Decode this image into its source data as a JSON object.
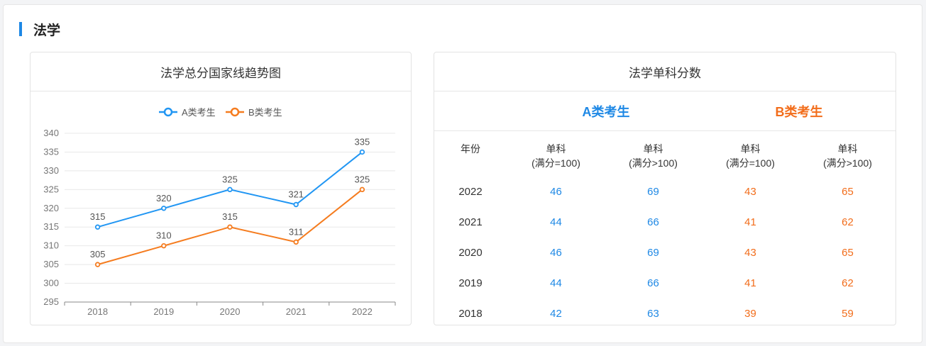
{
  "section": {
    "title": "法学"
  },
  "chart_card": {
    "title": "法学总分国家线趋势图"
  },
  "table_card": {
    "title": "法学单科分数",
    "group_a": "A类考生",
    "group_b": "B类考生",
    "headers": {
      "year": "年份",
      "col1_line1": "单科",
      "col1_line2": "(满分=100)",
      "col2_line1": "单科",
      "col2_line2": "(满分>100)",
      "col3_line1": "单科",
      "col3_line2": "(满分=100)",
      "col4_line1": "单科",
      "col4_line2": "(满分>100)"
    },
    "rows": [
      {
        "year": "2022",
        "a100": "46",
        "a_over": "69",
        "b100": "43",
        "b_over": "65"
      },
      {
        "year": "2021",
        "a100": "44",
        "a_over": "66",
        "b100": "41",
        "b_over": "62"
      },
      {
        "year": "2020",
        "a100": "46",
        "a_over": "69",
        "b100": "43",
        "b_over": "65"
      },
      {
        "year": "2019",
        "a100": "44",
        "a_over": "66",
        "b100": "41",
        "b_over": "62"
      },
      {
        "year": "2018",
        "a100": "42",
        "a_over": "63",
        "b100": "39",
        "b_over": "59"
      }
    ]
  },
  "colors": {
    "accent": "#1e88e5",
    "series_a": "#2196f3",
    "series_b": "#f57c1f"
  },
  "chart_data": {
    "type": "line",
    "title": "法学总分国家线趋势图",
    "categories": [
      "2018",
      "2019",
      "2020",
      "2021",
      "2022"
    ],
    "series": [
      {
        "name": "A类考生",
        "values": [
          315,
          320,
          325,
          321,
          335
        ],
        "color": "#2196f3"
      },
      {
        "name": "B类考生",
        "values": [
          305,
          310,
          315,
          311,
          325
        ],
        "color": "#f57c1f"
      }
    ],
    "ylim": [
      295,
      340
    ],
    "yticks": [
      295,
      300,
      305,
      310,
      315,
      320,
      325,
      330,
      335,
      340
    ],
    "xlabel": "",
    "ylabel": "",
    "grid": true,
    "legend": "top-center",
    "data_labels": true
  }
}
